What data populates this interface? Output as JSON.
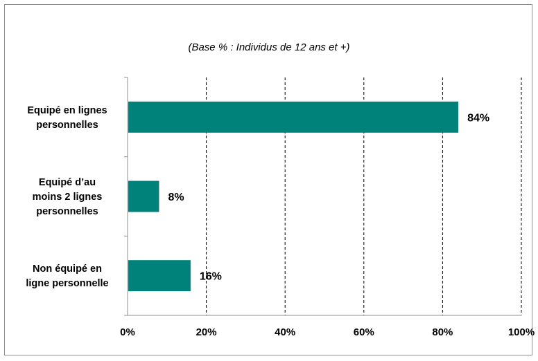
{
  "chart_data": {
    "type": "bar",
    "orientation": "horizontal",
    "subtitle": "(Base % :  Individus de 12 ans et +)",
    "categories": [
      [
        "Equipé en lignes",
        "personnelles"
      ],
      [
        "Equipé d’au",
        "moins 2 lignes",
        "personnelles"
      ],
      [
        "Non équipé en",
        "ligne personnelle"
      ]
    ],
    "values": [
      84,
      8,
      16
    ],
    "value_labels": [
      "84%",
      "8%",
      "16%"
    ],
    "xlim": [
      0,
      100
    ],
    "xticks": [
      0,
      20,
      40,
      60,
      80,
      100
    ],
    "xtick_labels": [
      "0%",
      "20%",
      "40%",
      "60%",
      "80%",
      "100%"
    ],
    "grid": "vertical-dashed",
    "bar_color": "#00827a",
    "legend": "none"
  }
}
